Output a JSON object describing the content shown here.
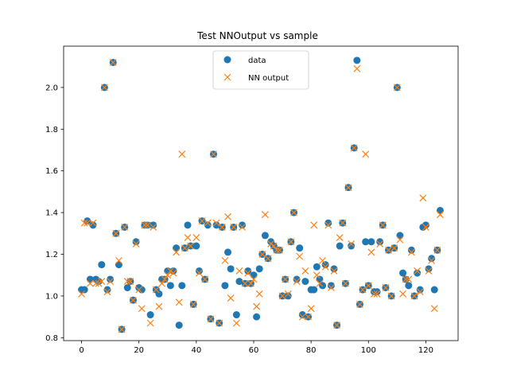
{
  "chart_data": {
    "type": "scatter",
    "title": "Test NNOutput vs sample",
    "xlabel": "",
    "ylabel": "",
    "xlim": [
      -6.25,
      131.25
    ],
    "ylim": [
      0.786,
      2.198
    ],
    "xticks": [
      0,
      20,
      40,
      60,
      80,
      100,
      120
    ],
    "yticks": [
      0.8,
      1.0,
      1.2,
      1.4,
      1.6,
      1.8,
      2.0
    ],
    "ytick_labels": [
      "0.8",
      "1.0",
      "1.2",
      "1.4",
      "1.6",
      "1.8",
      "2.0"
    ],
    "grid": false,
    "legend_position": "top-center",
    "series": [
      {
        "name": "data",
        "marker": "circle",
        "color": "#1f77b4",
        "x": [
          0,
          1,
          2,
          3,
          4,
          5,
          6,
          7,
          8,
          9,
          10,
          11,
          12,
          13,
          14,
          15,
          16,
          17,
          18,
          19,
          20,
          21,
          22,
          23,
          24,
          25,
          26,
          27,
          28,
          29,
          30,
          31,
          32,
          33,
          34,
          35,
          36,
          37,
          38,
          39,
          40,
          41,
          42,
          43,
          44,
          45,
          46,
          47,
          48,
          49,
          50,
          51,
          52,
          53,
          54,
          55,
          56,
          57,
          58,
          59,
          60,
          61,
          62,
          63,
          64,
          65,
          66,
          67,
          68,
          69,
          70,
          71,
          72,
          73,
          74,
          75,
          76,
          77,
          78,
          79,
          80,
          81,
          82,
          83,
          84,
          85,
          86,
          87,
          88,
          89,
          90,
          91,
          92,
          93,
          94,
          95,
          96,
          97,
          98,
          99,
          100,
          101,
          102,
          103,
          104,
          105,
          106,
          107,
          108,
          109,
          110,
          111,
          112,
          113,
          114,
          115,
          116,
          117,
          118,
          119,
          120,
          121,
          122,
          123,
          124,
          125
        ],
        "y": [
          1.03,
          1.03,
          1.36,
          1.08,
          1.34,
          1.08,
          1.07,
          1.15,
          2.0,
          1.03,
          1.08,
          2.12,
          1.3,
          1.15,
          0.84,
          1.33,
          1.04,
          1.07,
          0.98,
          1.26,
          1.04,
          1.03,
          1.34,
          1.34,
          0.91,
          1.34,
          1.03,
          1.01,
          1.08,
          1.08,
          1.12,
          1.05,
          1.12,
          1.23,
          0.86,
          1.05,
          1.23,
          1.34,
          1.24,
          0.96,
          1.24,
          1.12,
          1.36,
          1.08,
          1.34,
          0.89,
          1.68,
          1.34,
          0.87,
          1.33,
          1.05,
          1.21,
          1.13,
          1.33,
          0.91,
          1.07,
          1.34,
          1.06,
          1.12,
          1.06,
          1.1,
          0.9,
          1.13,
          1.2,
          1.29,
          1.18,
          1.26,
          1.24,
          1.22,
          1.22,
          1.0,
          1.08,
          1.0,
          1.26,
          1.4,
          1.08,
          1.23,
          0.91,
          1.07,
          0.9,
          1.03,
          1.03,
          1.14,
          1.08,
          1.05,
          1.15,
          1.35,
          1.05,
          1.13,
          0.86,
          1.24,
          1.35,
          1.06,
          1.52,
          1.24,
          1.71,
          2.13,
          0.96,
          1.03,
          1.26,
          1.05,
          1.26,
          1.02,
          1.02,
          1.26,
          1.34,
          1.04,
          1.22,
          1.0,
          1.23,
          2.0,
          1.29,
          1.11,
          1.08,
          1.05,
          1.22,
          1.0,
          1.11,
          1.03,
          1.33,
          1.34,
          1.13,
          1.18,
          1.03,
          1.22,
          1.41
        ]
      },
      {
        "name": "NN output",
        "marker": "x",
        "color": "#ff7f0e",
        "x": [
          0,
          1,
          2,
          3,
          4,
          5,
          6,
          7,
          8,
          9,
          10,
          11,
          12,
          13,
          14,
          15,
          16,
          17,
          18,
          19,
          20,
          21,
          22,
          23,
          24,
          25,
          26,
          27,
          28,
          29,
          30,
          31,
          32,
          33,
          34,
          35,
          36,
          37,
          38,
          39,
          40,
          41,
          42,
          43,
          44,
          45,
          46,
          47,
          48,
          49,
          50,
          51,
          52,
          53,
          54,
          55,
          56,
          57,
          58,
          59,
          60,
          61,
          62,
          63,
          64,
          65,
          66,
          67,
          68,
          69,
          70,
          71,
          72,
          73,
          74,
          75,
          76,
          77,
          78,
          79,
          80,
          81,
          82,
          83,
          84,
          85,
          86,
          87,
          88,
          89,
          90,
          91,
          92,
          93,
          94,
          95,
          96,
          97,
          98,
          99,
          100,
          101,
          102,
          103,
          104,
          105,
          106,
          107,
          108,
          109,
          110,
          111,
          112,
          113,
          114,
          115,
          116,
          117,
          118,
          119,
          120,
          121,
          122,
          123,
          124,
          125
        ],
        "y": [
          1.01,
          1.35,
          1.35,
          1.06,
          1.35,
          1.06,
          1.06,
          1.07,
          2.0,
          1.02,
          1.07,
          2.12,
          1.3,
          1.17,
          0.84,
          1.33,
          1.07,
          1.07,
          0.98,
          1.25,
          1.03,
          0.94,
          1.34,
          1.34,
          0.87,
          1.33,
          1.03,
          0.95,
          1.06,
          1.08,
          1.1,
          1.12,
          1.11,
          1.21,
          0.97,
          1.68,
          1.23,
          1.28,
          1.24,
          0.96,
          1.28,
          1.11,
          1.36,
          1.08,
          1.35,
          0.89,
          1.68,
          1.35,
          0.87,
          1.33,
          1.17,
          1.38,
          0.99,
          1.33,
          0.87,
          1.12,
          1.33,
          1.06,
          1.11,
          1.06,
          1.08,
          0.95,
          1.01,
          1.2,
          1.39,
          1.18,
          1.25,
          1.24,
          1.22,
          1.22,
          1.0,
          1.08,
          1.01,
          1.26,
          1.4,
          1.07,
          1.19,
          0.9,
          1.12,
          0.9,
          0.94,
          1.34,
          1.1,
          1.06,
          1.17,
          1.14,
          1.34,
          1.04,
          1.12,
          0.86,
          1.28,
          1.35,
          1.06,
          1.52,
          1.25,
          1.71,
          2.09,
          0.96,
          1.03,
          1.68,
          1.05,
          1.21,
          1.01,
          1.01,
          1.25,
          1.34,
          1.04,
          1.22,
          1.0,
          1.23,
          2.0,
          1.27,
          1.01,
          1.08,
          1.08,
          1.21,
          1.0,
          1.12,
          1.02,
          1.47,
          1.33,
          1.12,
          1.17,
          0.94,
          1.22,
          1.39
        ]
      }
    ]
  }
}
